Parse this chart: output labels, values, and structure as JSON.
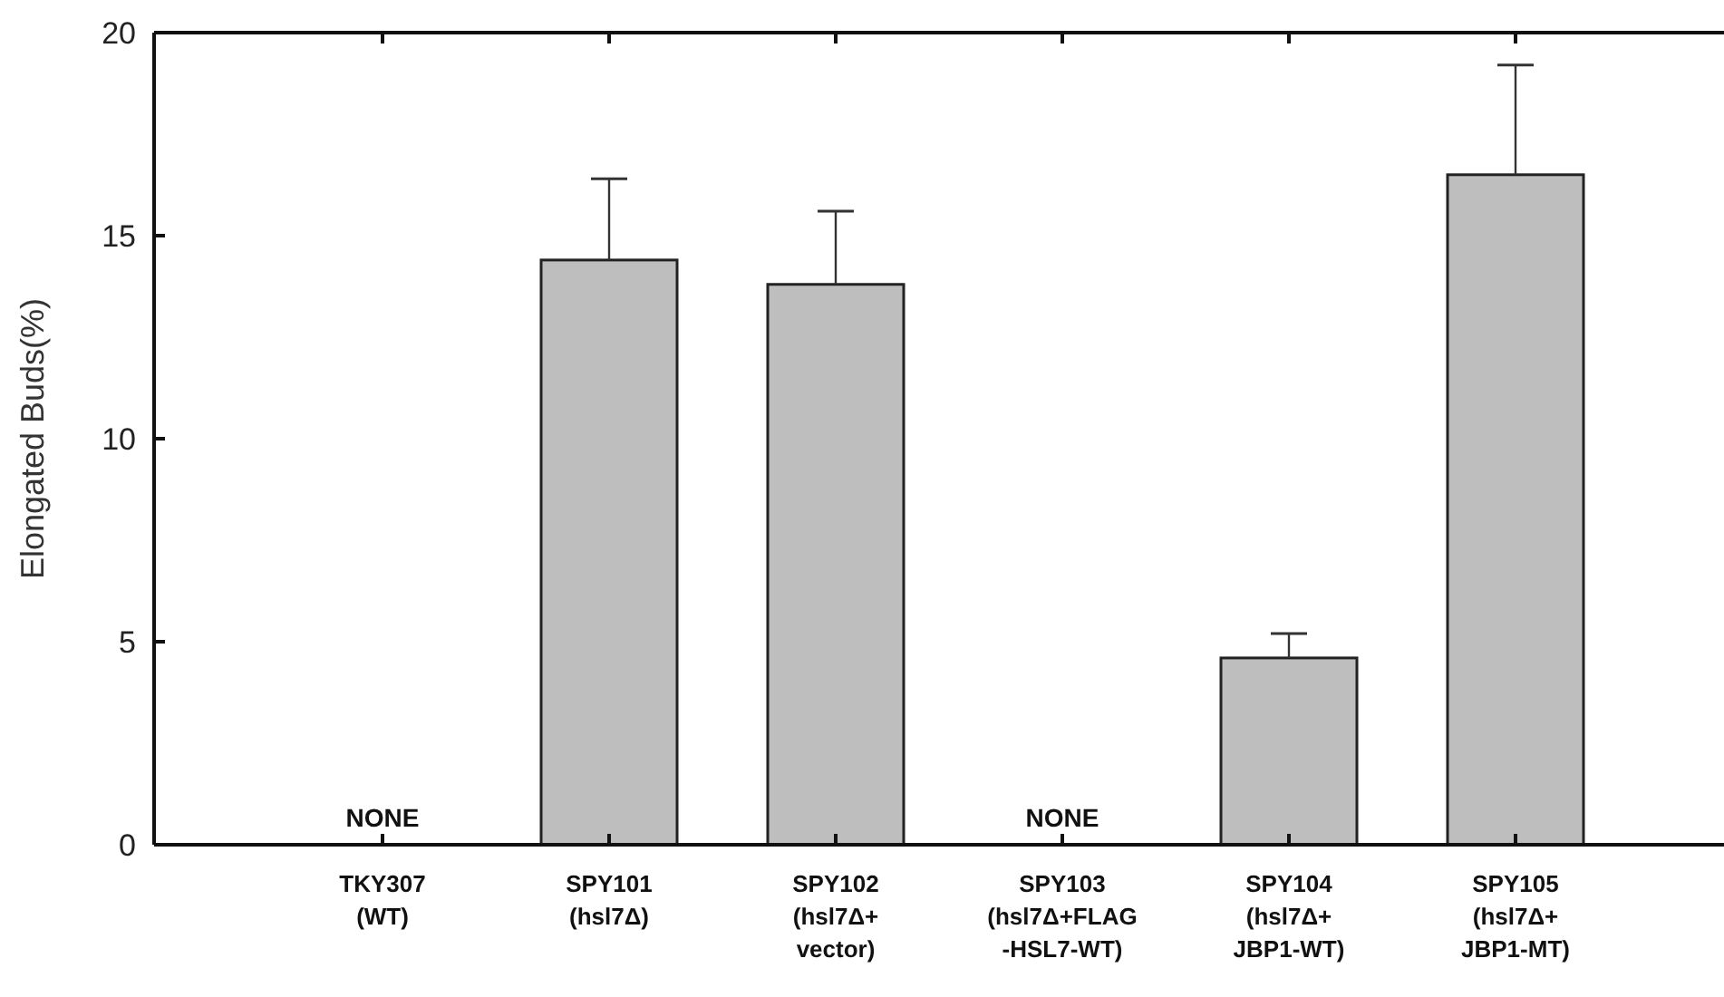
{
  "chart_data": {
    "type": "bar",
    "ylabel": "Elongated Buds(%)",
    "categories": [
      "TKY307\n(WT)",
      "SPY101\n(hsl7Δ)",
      "SPY102\n(hsl7Δ+\nvector)",
      "SPY103\n(hsl7Δ+FLAG\n-HSL7-WT)",
      "SPY104\n(hsl7Δ+\nJBP1-WT)",
      "SPY105\n(hsl7Δ+\nJBP1-MT)"
    ],
    "values": [
      0,
      14.4,
      13.8,
      0,
      4.6,
      16.5
    ],
    "errors": [
      null,
      [
        14.4,
        16.4
      ],
      [
        13.8,
        15.6
      ],
      null,
      [
        4.6,
        5.2
      ],
      [
        16.5,
        19.2
      ]
    ],
    "color": "#bebebe",
    "ylim": [
      0,
      20
    ],
    "yticks": [
      0,
      5,
      10,
      15,
      20
    ],
    "grid": false,
    "annotations": [
      {
        "text": "NONE",
        "x": "TKY307\n(WT)",
        "y": 0
      },
      {
        "text": "NONE",
        "x": "SPY103\n(hsl7Δ+FLAG\n-HSL7-WT)",
        "y": 0
      }
    ]
  }
}
